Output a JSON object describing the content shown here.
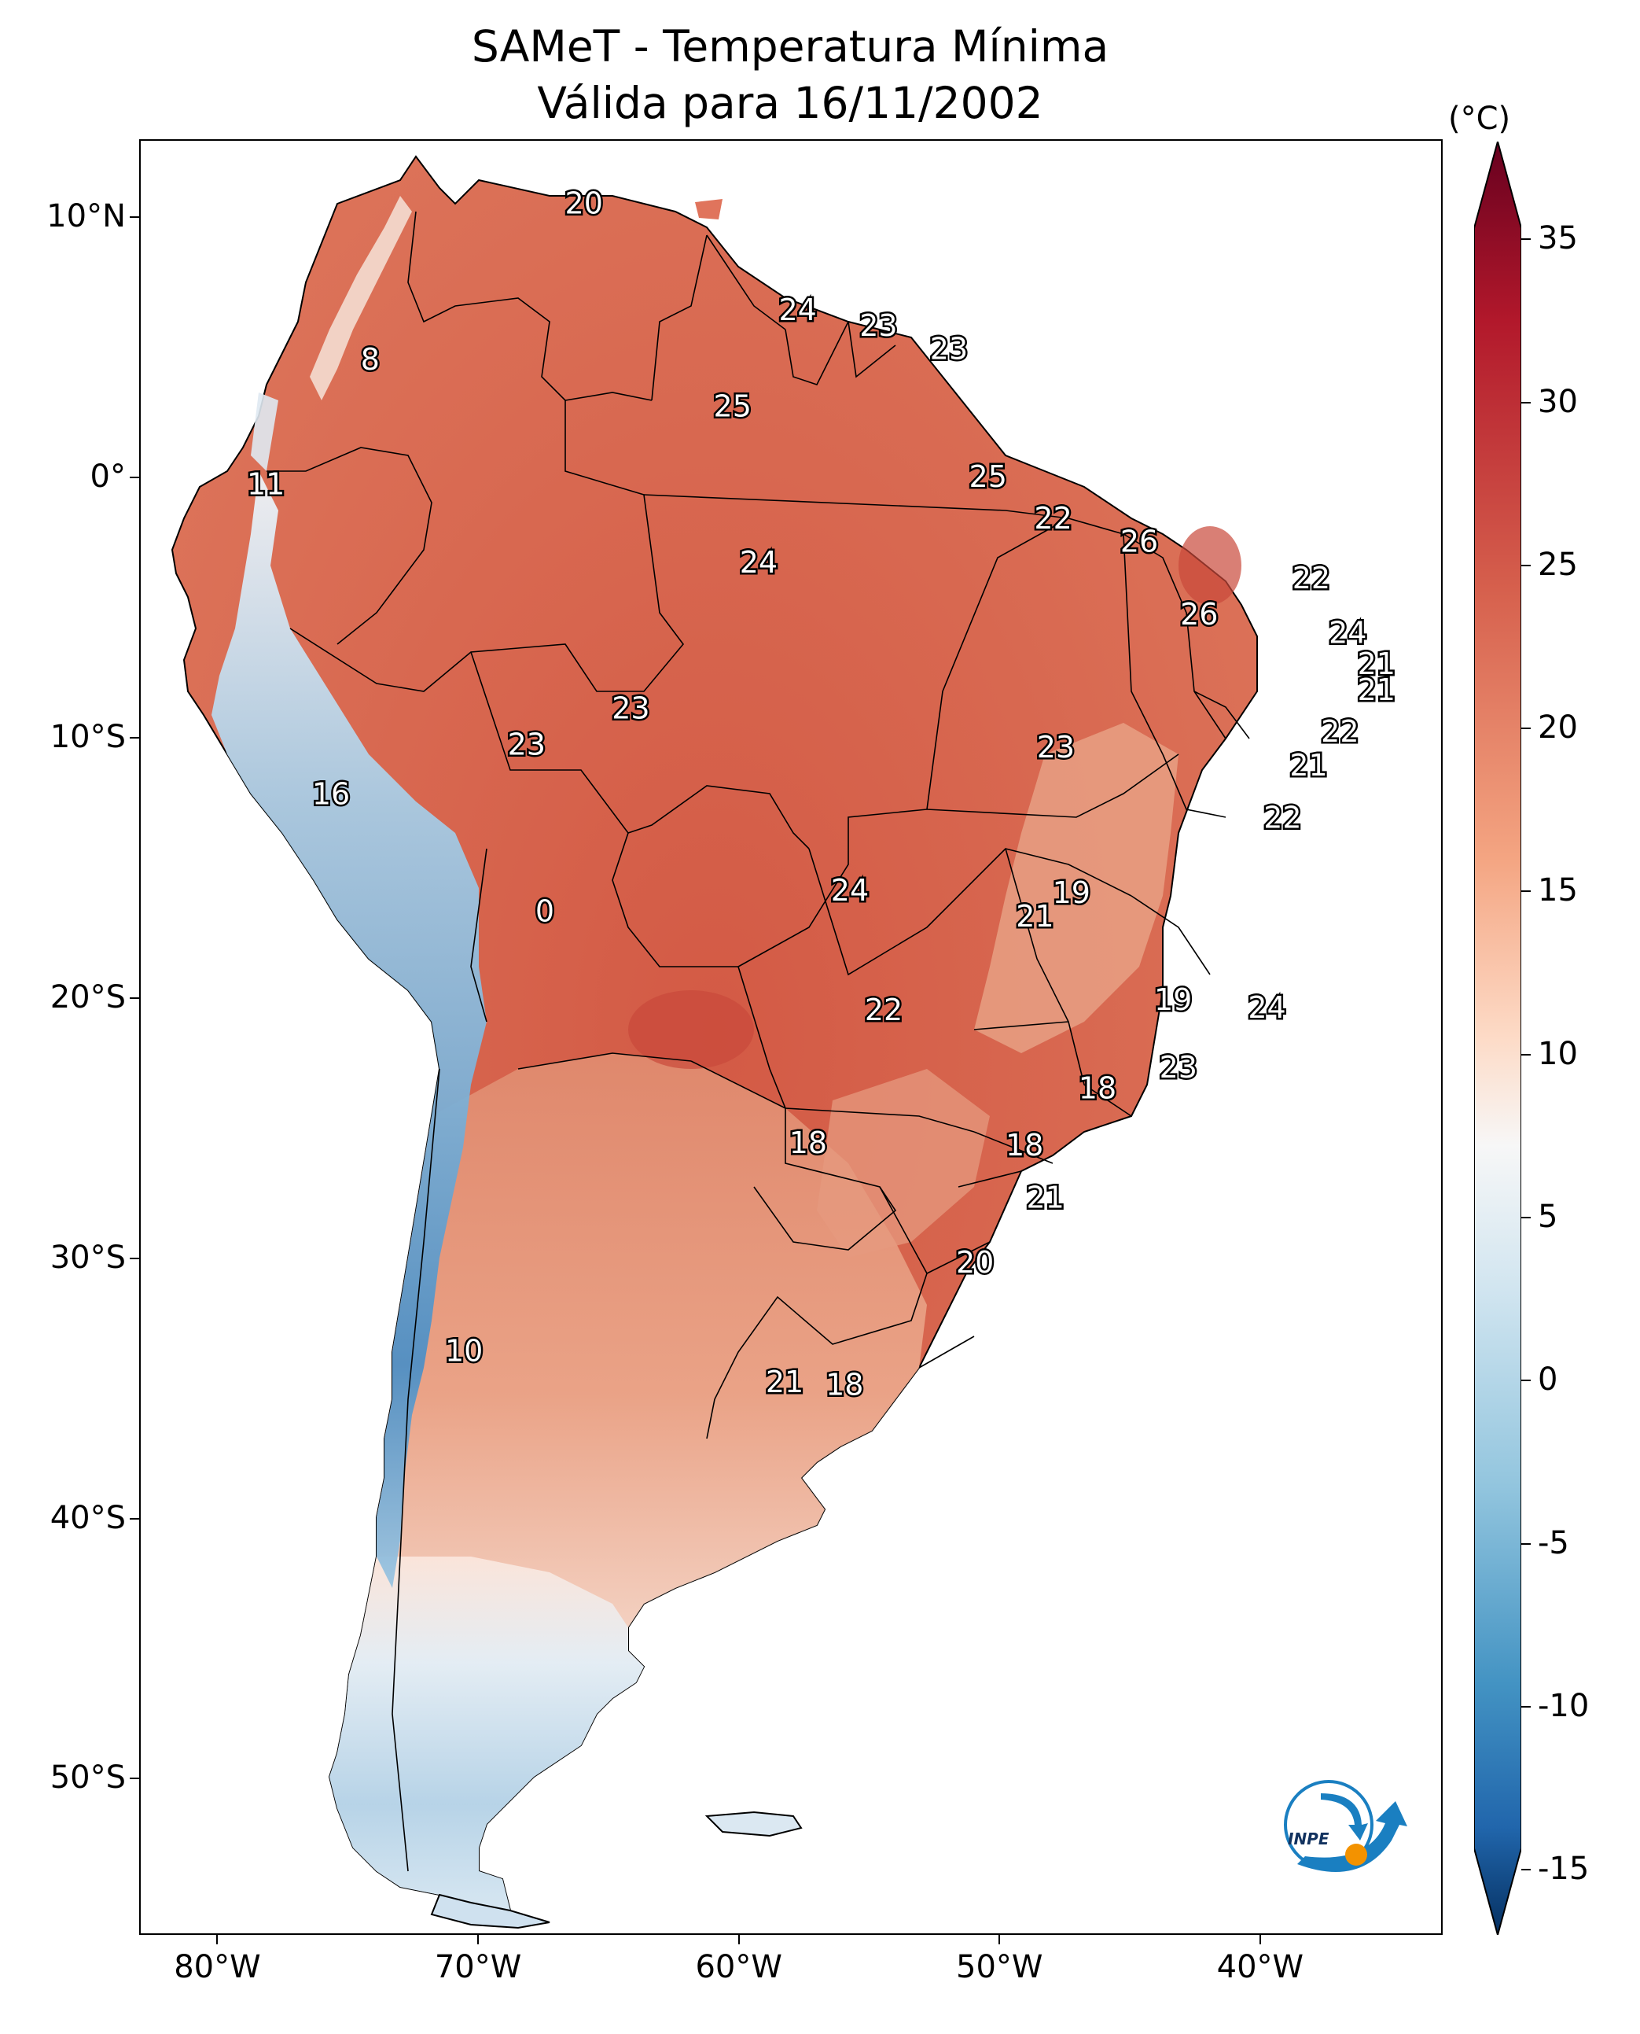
{
  "title": {
    "line1": "SAMeT - Temperatura Mínima",
    "line2": "Válida para 16/11/2002"
  },
  "axes": {
    "lat_ticks": [
      {
        "value": 10,
        "label": "10°N"
      },
      {
        "value": 0,
        "label": "0°"
      },
      {
        "value": -10,
        "label": "10°S"
      },
      {
        "value": -20,
        "label": "20°S"
      },
      {
        "value": -30,
        "label": "30°S"
      },
      {
        "value": -40,
        "label": "40°S"
      },
      {
        "value": -50,
        "label": "50°S"
      }
    ],
    "lon_ticks": [
      {
        "value": -80,
        "label": "80°W"
      },
      {
        "value": -70,
        "label": "70°W"
      },
      {
        "value": -60,
        "label": "60°W"
      },
      {
        "value": -50,
        "label": "50°W"
      },
      {
        "value": -40,
        "label": "40°W"
      }
    ],
    "lon_range": [
      -83,
      -33
    ],
    "lat_range": [
      -56,
      13
    ]
  },
  "colorbar": {
    "unit": "(°C)",
    "range": [
      -17,
      38
    ],
    "ticks": [
      "35",
      "30",
      "25",
      "20",
      "15",
      "10",
      "5",
      "0",
      "-5",
      "-10",
      "-15"
    ],
    "tick_values": [
      35,
      30,
      25,
      20,
      15,
      10,
      5,
      0,
      -5,
      -10,
      -15
    ],
    "colormap": "RdBu_r",
    "extend": "both"
  },
  "station_labels": [
    {
      "text": "20",
      "lon": -66,
      "lat": 10.6
    },
    {
      "text": "24",
      "lon": -57.8,
      "lat": 6.5
    },
    {
      "text": "23",
      "lon": -54.7,
      "lat": 5.9
    },
    {
      "text": "23",
      "lon": -52,
      "lat": 5
    },
    {
      "text": "8",
      "lon": -74.2,
      "lat": 4.6
    },
    {
      "text": "25",
      "lon": -60.3,
      "lat": 2.8
    },
    {
      "text": "25",
      "lon": -50.5,
      "lat": 0.1
    },
    {
      "text": "11",
      "lon": -78.2,
      "lat": -0.2
    },
    {
      "text": "22",
      "lon": -48,
      "lat": -1.5
    },
    {
      "text": "26",
      "lon": -44.7,
      "lat": -2.4
    },
    {
      "text": "24",
      "lon": -59.3,
      "lat": -3.2
    },
    {
      "text": "22",
      "lon": -38.1,
      "lat": -3.8
    },
    {
      "text": "26",
      "lon": -42.4,
      "lat": -5.2
    },
    {
      "text": "24",
      "lon": -36.7,
      "lat": -5.9
    },
    {
      "text": "21",
      "lon": -35.6,
      "lat": -7.1
    },
    {
      "text": "21",
      "lon": -35.6,
      "lat": -8.1
    },
    {
      "text": "23",
      "lon": -64.2,
      "lat": -8.8
    },
    {
      "text": "22",
      "lon": -37,
      "lat": -9.7
    },
    {
      "text": "23",
      "lon": -68.2,
      "lat": -10.2
    },
    {
      "text": "23",
      "lon": -47.9,
      "lat": -10.3
    },
    {
      "text": "21",
      "lon": -38.2,
      "lat": -11
    },
    {
      "text": "16",
      "lon": -75.7,
      "lat": -12.1
    },
    {
      "text": "22",
      "lon": -39.2,
      "lat": -13
    },
    {
      "text": "24",
      "lon": -55.8,
      "lat": -15.8
    },
    {
      "text": "19",
      "lon": -47.3,
      "lat": -15.9
    },
    {
      "text": "21",
      "lon": -48.7,
      "lat": -16.8
    },
    {
      "text": "0",
      "lon": -67.5,
      "lat": -16.6
    },
    {
      "text": "19",
      "lon": -43.4,
      "lat": -20
    },
    {
      "text": "22",
      "lon": -54.5,
      "lat": -20.4
    },
    {
      "text": "24",
      "lon": -39.8,
      "lat": -20.3
    },
    {
      "text": "23",
      "lon": -43.2,
      "lat": -22.6
    },
    {
      "text": "18",
      "lon": -46.3,
      "lat": -23.4
    },
    {
      "text": "18",
      "lon": -57.4,
      "lat": -25.5
    },
    {
      "text": "18",
      "lon": -49.1,
      "lat": -25.6
    },
    {
      "text": "21",
      "lon": -48.3,
      "lat": -27.6
    },
    {
      "text": "20",
      "lon": -51,
      "lat": -30.1
    },
    {
      "text": "10",
      "lon": -70.6,
      "lat": -33.5
    },
    {
      "text": "21",
      "lon": -58.3,
      "lat": -34.7
    },
    {
      "text": "18",
      "lon": -56,
      "lat": -34.8
    }
  ],
  "colors": {
    "land_warm": "#d9674f",
    "land_cool": "#f2c8b3",
    "land_cold": "#8fbad9",
    "ocean": "#ffffff",
    "border": "#000000"
  },
  "logo": {
    "text": "INPE"
  }
}
